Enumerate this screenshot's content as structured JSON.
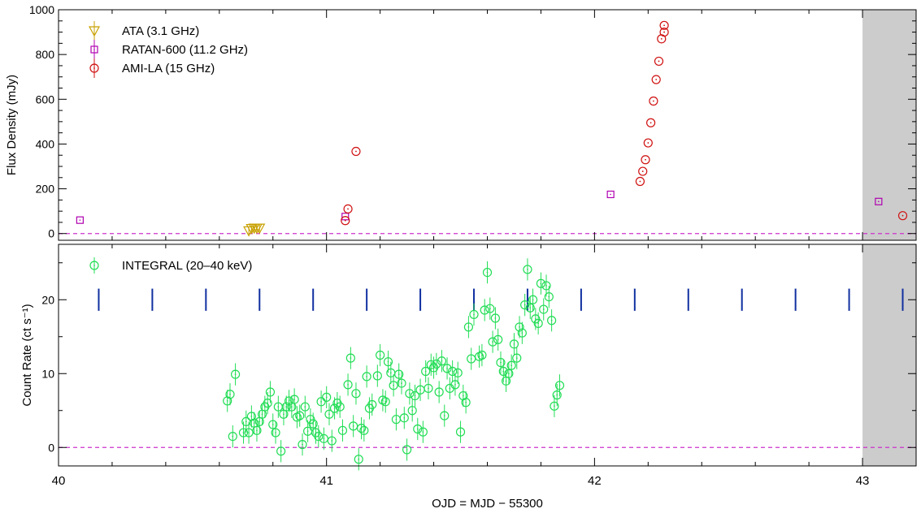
{
  "chart_data": [
    {
      "type": "scatter",
      "panel": "top",
      "xlim": [
        40,
        43.2
      ],
      "ylim": [
        -30,
        1000
      ],
      "ylabel": "Flux Density (mJy)",
      "yticks": [
        0,
        200,
        400,
        600,
        800,
        1000
      ],
      "yminor_step": 50,
      "reference_line": {
        "y": 0,
        "style": "dashed",
        "color": "#cc33cc"
      },
      "shaded_region": {
        "x0": 43.0,
        "x1": 43.2,
        "color": "#cccccc"
      },
      "legend_position": "top-left",
      "grid": false,
      "series": [
        {
          "name": "ATA (3.1 GHz)",
          "marker": "triangle-down",
          "color": "#c8a000",
          "points": [
            [
              40.71,
              12,
              15
            ],
            [
              40.72,
              22,
              15
            ],
            [
              40.73,
              24,
              15
            ],
            [
              40.74,
              24,
              15
            ],
            [
              40.75,
              24,
              15
            ]
          ]
        },
        {
          "name": "RATAN-600 (11.2 GHz)",
          "marker": "square",
          "color": "#b000b0",
          "points": [
            [
              40.08,
              60,
              0
            ],
            [
              41.07,
              76,
              0
            ],
            [
              42.06,
              175,
              0
            ],
            [
              43.06,
              143,
              0
            ]
          ]
        },
        {
          "name": "AMI-LA (15 GHz)",
          "marker": "circle",
          "color": "#d01010",
          "points": [
            [
              41.07,
              58,
              0
            ],
            [
              41.08,
              110,
              0
            ],
            [
              41.11,
              367,
              0
            ],
            [
              42.17,
              233,
              0
            ],
            [
              42.18,
              278,
              0
            ],
            [
              42.19,
              330,
              0
            ],
            [
              42.2,
              405,
              0
            ],
            [
              42.21,
              495,
              0
            ],
            [
              42.22,
              592,
              0
            ],
            [
              42.23,
              688,
              0
            ],
            [
              42.24,
              770,
              0
            ],
            [
              42.25,
              870,
              0
            ],
            [
              42.26,
              900,
              0
            ],
            [
              42.26,
              930,
              0
            ],
            [
              43.15,
              80,
              0
            ]
          ]
        }
      ]
    },
    {
      "type": "scatter",
      "panel": "bottom",
      "xlim": [
        40,
        43.2
      ],
      "ylim": [
        -2.5,
        27.5
      ],
      "xlabel": "OJD = MJD − 55300",
      "ylabel": "Count Rate (ct s⁻¹)",
      "xticks": [
        40,
        41,
        42,
        43
      ],
      "xminor_step": 0.2,
      "yticks": [
        0,
        10,
        20
      ],
      "yminor_step": 5,
      "reference_line": {
        "y": 0,
        "style": "dashed",
        "color": "#cc33cc"
      },
      "shaded_region": {
        "x0": 43.0,
        "x1": 43.2,
        "color": "#cccccc"
      },
      "legend_position": "top-left",
      "grid": false,
      "orbit_markers": {
        "color": "#1030a0",
        "y_center": 20.0,
        "height": 3.0,
        "x": [
          40.15,
          40.35,
          40.55,
          40.75,
          40.95,
          41.15,
          41.35,
          41.55,
          41.75,
          41.95,
          42.15,
          42.35,
          42.55,
          42.75,
          42.95,
          43.15
        ]
      },
      "series": [
        {
          "name": "INTEGRAL (20–40 keV)",
          "marker": "circle",
          "color": "#22dd55",
          "points": [
            [
              40.63,
              6.3,
              1.5
            ],
            [
              40.64,
              7.2,
              1.5
            ],
            [
              40.65,
              1.5,
              1.5
            ],
            [
              40.66,
              9.9,
              1.5
            ],
            [
              40.69,
              2.0,
              1.5
            ],
            [
              40.7,
              3.5,
              1.5
            ],
            [
              40.71,
              2.0,
              1.5
            ],
            [
              40.72,
              4.2,
              1.5
            ],
            [
              40.73,
              3.3,
              1.5
            ],
            [
              40.74,
              2.3,
              1.5
            ],
            [
              40.75,
              3.5,
              1.5
            ],
            [
              40.76,
              4.5,
              1.5
            ],
            [
              40.77,
              5.5,
              1.5
            ],
            [
              40.78,
              6.0,
              1.5
            ],
            [
              40.79,
              7.5,
              1.5
            ],
            [
              40.8,
              3.1,
              1.5
            ],
            [
              40.81,
              2.0,
              1.5
            ],
            [
              40.82,
              5.5,
              1.5
            ],
            [
              40.83,
              -0.5,
              1.5
            ],
            [
              40.84,
              4.5,
              1.5
            ],
            [
              40.85,
              5.5,
              1.5
            ],
            [
              40.86,
              6.3,
              1.5
            ],
            [
              40.87,
              5.5,
              1.5
            ],
            [
              40.88,
              6.5,
              1.5
            ],
            [
              40.89,
              4.1,
              1.5
            ],
            [
              40.9,
              4.3,
              1.5
            ],
            [
              40.91,
              0.4,
              1.5
            ],
            [
              40.92,
              5.5,
              1.5
            ],
            [
              40.93,
              2.2,
              1.5
            ],
            [
              40.94,
              3.8,
              1.5
            ],
            [
              40.95,
              3.2,
              1.5
            ],
            [
              40.96,
              2.0,
              1.5
            ],
            [
              40.97,
              1.5,
              1.5
            ],
            [
              40.98,
              6.2,
              1.5
            ],
            [
              40.99,
              1.2,
              1.5
            ],
            [
              41.0,
              6.8,
              1.5
            ],
            [
              41.01,
              4.5,
              1.5
            ],
            [
              41.02,
              0.9,
              1.5
            ],
            [
              41.03,
              5.3,
              1.5
            ],
            [
              41.04,
              6.0,
              1.5
            ],
            [
              41.05,
              5.5,
              1.5
            ],
            [
              41.06,
              2.3,
              1.5
            ],
            [
              41.08,
              8.5,
              1.5
            ],
            [
              41.09,
              12.1,
              1.5
            ],
            [
              41.1,
              2.9,
              1.5
            ],
            [
              41.11,
              7.3,
              1.5
            ],
            [
              41.12,
              -1.6,
              1.5
            ],
            [
              41.13,
              2.6,
              1.5
            ],
            [
              41.14,
              2.3,
              1.5
            ],
            [
              41.15,
              9.6,
              1.5
            ],
            [
              41.16,
              5.3,
              1.5
            ],
            [
              41.17,
              5.8,
              1.5
            ],
            [
              41.19,
              9.7,
              1.5
            ],
            [
              41.2,
              12.5,
              1.5
            ],
            [
              41.21,
              6.4,
              1.5
            ],
            [
              41.22,
              6.2,
              1.5
            ],
            [
              41.23,
              11.6,
              1.5
            ],
            [
              41.24,
              10.1,
              1.5
            ],
            [
              41.25,
              8.4,
              1.5
            ],
            [
              41.26,
              3.8,
              1.5
            ],
            [
              41.27,
              9.9,
              1.5
            ],
            [
              41.28,
              8.7,
              1.5
            ],
            [
              41.29,
              4.0,
              1.5
            ],
            [
              41.3,
              -0.3,
              1.5
            ],
            [
              41.31,
              7.3,
              1.5
            ],
            [
              41.32,
              5.0,
              1.5
            ],
            [
              41.33,
              7.0,
              1.5
            ],
            [
              41.34,
              2.5,
              1.5
            ],
            [
              41.35,
              7.8,
              1.5
            ],
            [
              41.36,
              2.1,
              1.5
            ],
            [
              41.37,
              10.3,
              1.5
            ],
            [
              41.38,
              8.0,
              1.5
            ],
            [
              41.39,
              11.2,
              1.5
            ],
            [
              41.4,
              10.8,
              1.5
            ],
            [
              41.41,
              11.3,
              1.5
            ],
            [
              41.42,
              7.5,
              1.5
            ],
            [
              41.43,
              11.7,
              1.5
            ],
            [
              41.44,
              4.3,
              1.5
            ],
            [
              41.45,
              10.7,
              1.5
            ],
            [
              41.46,
              8.0,
              1.5
            ],
            [
              41.47,
              10.3,
              1.5
            ],
            [
              41.48,
              8.5,
              1.5
            ],
            [
              41.49,
              10.1,
              1.5
            ],
            [
              41.5,
              2.1,
              1.5
            ],
            [
              41.51,
              7.0,
              1.5
            ],
            [
              41.52,
              6.1,
              1.5
            ],
            [
              41.53,
              16.3,
              1.5
            ],
            [
              41.54,
              12.0,
              1.5
            ],
            [
              41.55,
              18.0,
              1.5
            ],
            [
              41.57,
              12.3,
              1.5
            ],
            [
              41.58,
              12.5,
              1.5
            ],
            [
              41.59,
              18.6,
              1.5
            ],
            [
              41.6,
              23.7,
              1.5
            ],
            [
              41.61,
              18.8,
              1.5
            ],
            [
              41.62,
              14.3,
              1.5
            ],
            [
              41.63,
              17.5,
              1.5
            ],
            [
              41.64,
              14.6,
              1.5
            ],
            [
              41.65,
              11.5,
              1.5
            ],
            [
              41.66,
              10.3,
              1.5
            ],
            [
              41.67,
              9.0,
              1.5
            ],
            [
              41.68,
              10.0,
              1.5
            ],
            [
              41.69,
              11.1,
              1.5
            ],
            [
              41.7,
              14.0,
              1.5
            ],
            [
              41.71,
              12.1,
              1.5
            ],
            [
              41.72,
              16.3,
              1.5
            ],
            [
              41.73,
              15.5,
              1.5
            ],
            [
              41.74,
              19.3,
              1.5
            ],
            [
              41.75,
              24.1,
              1.5
            ],
            [
              41.76,
              18.9,
              1.5
            ],
            [
              41.77,
              20.0,
              1.5
            ],
            [
              41.78,
              17.4,
              1.5
            ],
            [
              41.79,
              16.8,
              1.5
            ],
            [
              41.8,
              22.2,
              1.5
            ],
            [
              41.81,
              18.7,
              1.5
            ],
            [
              41.82,
              21.9,
              1.5
            ],
            [
              41.83,
              20.4,
              1.5
            ],
            [
              41.84,
              17.2,
              1.5
            ],
            [
              41.85,
              5.6,
              1.5
            ],
            [
              41.86,
              7.1,
              1.5
            ],
            [
              41.87,
              8.4,
              1.5
            ]
          ]
        }
      ]
    }
  ]
}
